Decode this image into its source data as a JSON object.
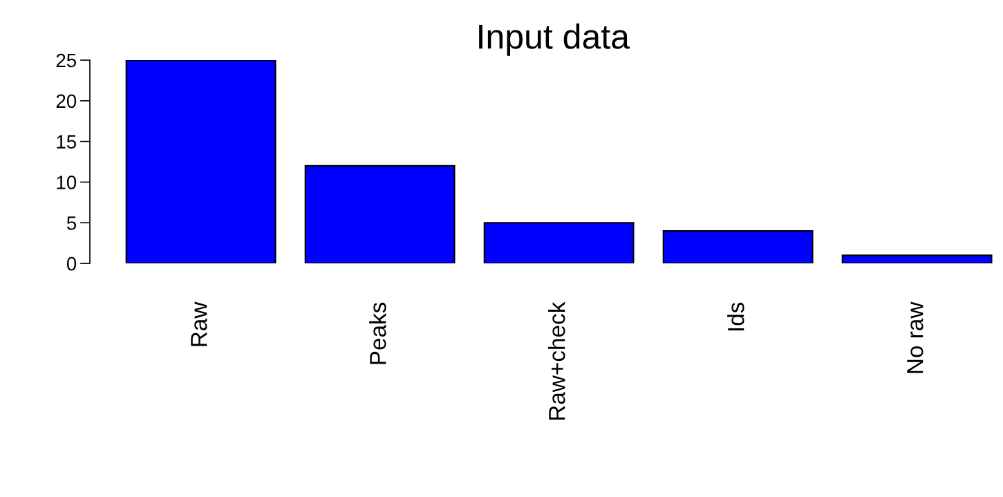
{
  "chart_data": {
    "type": "bar",
    "title": "Input data",
    "categories": [
      "Raw",
      "Peaks",
      "Raw+check",
      "Ids",
      "No raw"
    ],
    "values": [
      25,
      12,
      5,
      4,
      1
    ],
    "color": "#0000ff",
    "ylim": [
      0,
      25
    ],
    "yticks": [
      0,
      5,
      10,
      15,
      20,
      25
    ],
    "grid": false,
    "legend": false
  }
}
